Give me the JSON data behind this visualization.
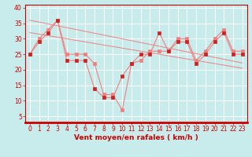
{
  "xlabel": "Vent moyen/en rafales ( km/h )",
  "background_color": "#c8ecec",
  "grid_color": "#aed8d8",
  "line_color": "#f08080",
  "marker_color": "#cc2222",
  "x": [
    0,
    1,
    2,
    3,
    4,
    5,
    6,
    7,
    8,
    9,
    10,
    11,
    12,
    13,
    14,
    15,
    16,
    17,
    18,
    19,
    20,
    21,
    22,
    23
  ],
  "y_mean": [
    25,
    29,
    32,
    36,
    23,
    23,
    23,
    14,
    11,
    11,
    18,
    22,
    25,
    25,
    32,
    26,
    29,
    29,
    22,
    25,
    29,
    32,
    25,
    25
  ],
  "y_gust": [
    25,
    30,
    33,
    36,
    25,
    25,
    25,
    22,
    12,
    12,
    7,
    22,
    23,
    26,
    26,
    26,
    30,
    30,
    23,
    26,
    30,
    33,
    26,
    26
  ],
  "y_trend1": [
    36,
    35.4,
    34.8,
    34.2,
    33.6,
    33.0,
    32.4,
    31.8,
    31.2,
    30.6,
    30.0,
    29.4,
    28.8,
    28.2,
    27.6,
    27.0,
    26.4,
    25.8,
    25.2,
    24.6,
    24.0,
    23.4,
    22.8,
    22.2
  ],
  "y_trend2": [
    32,
    31.5,
    31.0,
    30.5,
    30.0,
    29.5,
    29.0,
    28.5,
    28.0,
    27.5,
    27.0,
    26.5,
    26.0,
    25.5,
    25.0,
    24.5,
    24.0,
    23.5,
    23.0,
    22.5,
    22.0,
    21.5,
    21.0,
    20.5
  ],
  "ylim": [
    3,
    41
  ],
  "yticks": [
    5,
    10,
    15,
    20,
    25,
    30,
    35,
    40
  ],
  "font_color": "#cc0000",
  "tick_fontsize": 5.5,
  "xlabel_fontsize": 6.5
}
